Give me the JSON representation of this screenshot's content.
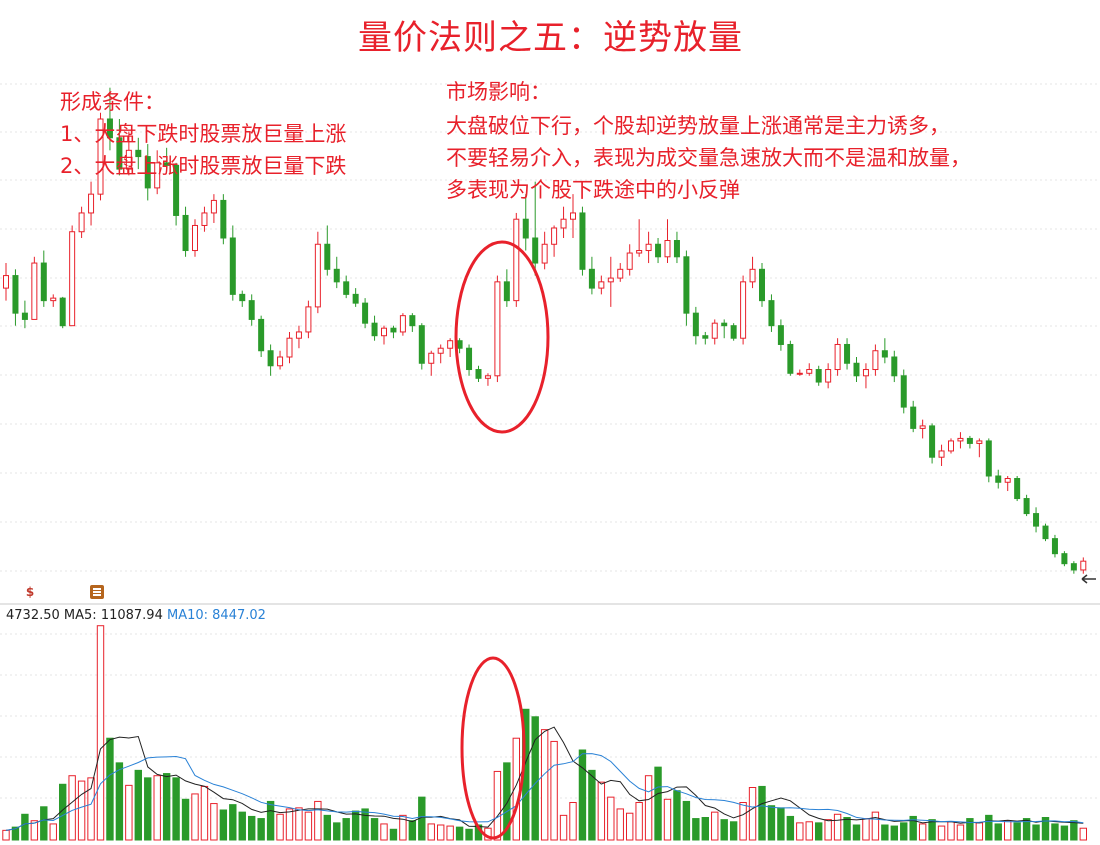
{
  "title": "量价法则之五：逆势放量",
  "conditions": {
    "heading": "形成条件：",
    "items": [
      "1、大盘下跌时股票放巨量上涨",
      "2、大盘上涨时股票放巨量下跌"
    ]
  },
  "impact": {
    "heading": "市场影响：",
    "lines": [
      "大盘破位下行，个股却逆势放量上涨通常是主力诱多，",
      "不要轻易介入，表现为成交量急速放大而不是温和放量，",
      "多表现为个股下跌途中的小反弹"
    ]
  },
  "volume_info": {
    "volume": "4732.50",
    "ma5_label": "MA5:",
    "ma5_value": "11087.94",
    "ma10_label": "MA10:",
    "ma10_value": "8447.02"
  },
  "icons": {
    "dollar": "dollar-icon",
    "list": "list-icon"
  },
  "colors": {
    "up": "#e8212b",
    "down": "#2a9a2a",
    "ma5": "#222222",
    "ma10": "#2a82d6",
    "annotation": "#e8212b"
  },
  "chart_data": [
    {
      "type": "candlestick",
      "series": [
        {
          "name": "price",
          "values": [
            [
              50.0,
              52.0,
              49.0,
              51.0
            ],
            [
              51.0,
              51.5,
              47.0,
              48.0
            ],
            [
              48.0,
              49.0,
              46.8,
              47.5
            ],
            [
              47.5,
              52.5,
              47.5,
              52.0
            ],
            [
              52.0,
              53.0,
              48.5,
              49.0
            ],
            [
              49.0,
              49.5,
              48.5,
              49.2
            ],
            [
              49.2,
              49.3,
              46.8,
              47.0
            ],
            [
              47.0,
              55.0,
              47.0,
              54.5
            ],
            [
              54.5,
              56.5,
              54.0,
              56.0
            ],
            [
              56.0,
              58.5,
              55.0,
              57.5
            ],
            [
              57.5,
              64.0,
              57.0,
              63.5
            ],
            [
              63.5,
              66.0,
              61.0,
              62.0
            ],
            [
              62.0,
              63.5,
              59.0,
              59.5
            ],
            [
              59.5,
              62.5,
              59.0,
              61.0
            ],
            [
              61.0,
              62.0,
              59.5,
              60.5
            ],
            [
              60.5,
              61.5,
              57.0,
              58.0
            ],
            [
              58.0,
              61.0,
              57.5,
              60.0
            ],
            [
              60.0,
              61.2,
              59.5,
              59.8
            ],
            [
              59.8,
              60.0,
              55.0,
              55.8
            ],
            [
              55.8,
              56.5,
              52.5,
              53.0
            ],
            [
              53.0,
              55.5,
              52.5,
              55.0
            ],
            [
              55.0,
              56.5,
              54.5,
              56.0
            ],
            [
              56.0,
              57.5,
              55.2,
              57.0
            ],
            [
              57.0,
              57.5,
              53.5,
              54.0
            ],
            [
              54.0,
              55.0,
              49.0,
              49.5
            ],
            [
              49.5,
              49.8,
              48.5,
              49.0
            ],
            [
              49.0,
              49.5,
              47.0,
              47.5
            ],
            [
              47.5,
              47.8,
              44.5,
              45.0
            ],
            [
              45.0,
              45.5,
              43.0,
              43.8
            ],
            [
              43.8,
              45.0,
              43.5,
              44.5
            ],
            [
              44.5,
              46.5,
              44.0,
              46.0
            ],
            [
              46.0,
              47.0,
              45.2,
              46.5
            ],
            [
              46.5,
              49.0,
              46.0,
              48.5
            ],
            [
              48.5,
              54.5,
              48.0,
              53.5
            ],
            [
              53.5,
              55.0,
              51.0,
              51.5
            ],
            [
              51.5,
              52.5,
              50.0,
              50.5
            ],
            [
              50.5,
              51.0,
              49.2,
              49.5
            ],
            [
              49.5,
              50.0,
              48.5,
              48.8
            ],
            [
              48.8,
              49.2,
              46.8,
              47.2
            ],
            [
              47.2,
              47.8,
              45.8,
              46.2
            ],
            [
              46.2,
              47.0,
              45.5,
              46.8
            ],
            [
              46.8,
              47.0,
              46.0,
              46.5
            ],
            [
              46.5,
              48.0,
              46.2,
              47.8
            ],
            [
              47.8,
              48.0,
              46.5,
              47.0
            ],
            [
              47.0,
              47.2,
              43.5,
              44.0
            ],
            [
              44.0,
              45.0,
              43.0,
              44.8
            ],
            [
              44.8,
              45.5,
              44.0,
              45.2
            ],
            [
              45.2,
              46.0,
              44.5,
              45.8
            ],
            [
              45.8,
              46.0,
              44.8,
              45.2
            ],
            [
              45.2,
              45.5,
              43.0,
              43.5
            ],
            [
              43.5,
              43.8,
              42.5,
              42.8
            ],
            [
              42.8,
              43.2,
              42.2,
              43.0
            ],
            [
              43.0,
              51.0,
              42.5,
              50.5
            ],
            [
              50.5,
              51.5,
              48.5,
              49.0
            ],
            [
              49.0,
              56.0,
              48.5,
              55.5
            ],
            [
              55.5,
              57.5,
              53.0,
              54.0
            ],
            [
              54.0,
              58.5,
              51.0,
              52.0
            ],
            [
              52.0,
              54.5,
              51.5,
              53.5
            ],
            [
              53.5,
              55.0,
              52.5,
              54.8
            ],
            [
              54.8,
              56.5,
              54.0,
              55.5
            ],
            [
              55.5,
              57.5,
              54.0,
              56.0
            ],
            [
              56.0,
              56.5,
              51.0,
              51.5
            ],
            [
              51.5,
              52.5,
              49.5,
              50.0
            ],
            [
              50.0,
              51.0,
              49.5,
              50.5
            ],
            [
              50.5,
              52.5,
              48.5,
              50.8
            ],
            [
              50.8,
              52.0,
              50.5,
              51.5
            ],
            [
              51.5,
              53.5,
              51.0,
              52.8
            ],
            [
              52.8,
              55.5,
              52.5,
              53.0
            ],
            [
              53.0,
              54.5,
              52.0,
              53.5
            ],
            [
              53.5,
              54.0,
              52.0,
              52.5
            ],
            [
              52.5,
              55.5,
              52.0,
              53.8
            ],
            [
              53.8,
              54.5,
              52.0,
              52.5
            ],
            [
              52.5,
              53.0,
              47.0,
              48.0
            ],
            [
              48.0,
              48.5,
              45.5,
              46.2
            ],
            [
              46.2,
              46.5,
              45.5,
              46.0
            ],
            [
              46.0,
              47.5,
              45.5,
              47.2
            ],
            [
              47.2,
              47.5,
              46.0,
              47.0
            ],
            [
              47.0,
              47.2,
              45.8,
              46.0
            ],
            [
              46.0,
              51.0,
              45.5,
              50.5
            ],
            [
              50.5,
              52.5,
              50.0,
              51.5
            ],
            [
              51.5,
              52.0,
              48.5,
              49.0
            ],
            [
              49.0,
              49.5,
              46.5,
              47.0
            ],
            [
              47.0,
              47.5,
              45.0,
              45.5
            ],
            [
              45.5,
              45.8,
              43.0,
              43.2
            ],
            [
              43.2,
              43.5,
              43.0,
              43.2
            ],
            [
              43.2,
              44.0,
              43.0,
              43.5
            ],
            [
              43.5,
              43.8,
              42.2,
              42.5
            ],
            [
              42.5,
              44.0,
              42.0,
              43.5
            ],
            [
              43.5,
              46.0,
              43.0,
              45.5
            ],
            [
              45.5,
              46.0,
              43.5,
              44.0
            ],
            [
              44.0,
              44.5,
              42.5,
              43.0
            ],
            [
              43.0,
              44.0,
              42.0,
              43.5
            ],
            [
              43.5,
              45.5,
              43.0,
              45.0
            ],
            [
              45.0,
              46.0,
              44.0,
              44.5
            ],
            [
              44.5,
              45.0,
              42.5,
              43.0
            ],
            [
              43.0,
              43.5,
              40.0,
              40.5
            ],
            [
              40.5,
              41.0,
              38.5,
              38.8
            ],
            [
              38.8,
              39.5,
              38.0,
              39.0
            ],
            [
              39.0,
              39.2,
              36.0,
              36.5
            ],
            [
              36.5,
              37.5,
              35.8,
              37.0
            ],
            [
              37.0,
              38.0,
              36.8,
              37.8
            ],
            [
              37.8,
              38.5,
              37.2,
              38.0
            ],
            [
              38.0,
              38.2,
              37.2,
              37.6
            ],
            [
              37.6,
              38.0,
              36.5,
              37.8
            ],
            [
              37.8,
              38.0,
              34.5,
              35.0
            ],
            [
              35.0,
              35.5,
              34.0,
              34.5
            ],
            [
              34.5,
              35.0,
              33.8,
              34.8
            ],
            [
              34.8,
              35.0,
              33.0,
              33.2
            ],
            [
              33.2,
              33.5,
              31.8,
              32.0
            ],
            [
              32.0,
              32.5,
              30.5,
              31.0
            ],
            [
              31.0,
              31.2,
              29.8,
              30.0
            ],
            [
              30.0,
              30.3,
              28.5,
              28.8
            ],
            [
              28.8,
              29.0,
              27.8,
              28.0
            ],
            [
              28.0,
              28.2,
              27.2,
              27.5
            ],
            [
              27.5,
              28.5,
              27.2,
              28.2
            ]
          ]
        }
      ],
      "ylim": [
        25.5,
        73.0
      ]
    },
    {
      "type": "bar",
      "series": [
        {
          "name": "volume",
          "values": [
            900,
            1200,
            2400,
            1800,
            3100,
            1500,
            5200,
            6000,
            5500,
            5800,
            20000,
            9500,
            7200,
            5100,
            6500,
            5800,
            6000,
            6200,
            5800,
            3800,
            4300,
            5000,
            3400,
            2800,
            3300,
            2600,
            2200,
            2000,
            3600,
            2400,
            2900,
            3000,
            2600,
            3600,
            2300,
            1600,
            2000,
            2700,
            2900,
            2000,
            1500,
            1000,
            2300,
            1800,
            4000,
            1500,
            1400,
            1300,
            1200,
            1000,
            1400,
            1100,
            6400,
            7200,
            9500,
            12200,
            11500,
            10300,
            9200,
            2300,
            3500,
            8400,
            6500,
            5400,
            4000,
            2900,
            2500,
            3500,
            6000,
            6800,
            3800,
            4600,
            3600,
            2000,
            2100,
            2600,
            1900,
            1700,
            3500,
            4900,
            5000,
            3200,
            3000,
            2200,
            1600,
            1700,
            1600,
            1900,
            2400,
            2100,
            1400,
            2000,
            2600,
            1400,
            1300,
            1600,
            2200,
            1500,
            1900,
            1300,
            1700,
            1400,
            2000,
            1600,
            2300,
            1500,
            1800,
            1600,
            2000,
            1400,
            2100,
            1500,
            1300,
            1800,
            1100
          ]
        }
      ],
      "ma_lines": [
        {
          "name": "MA5"
        },
        {
          "name": "MA10"
        }
      ],
      "ylim": [
        0,
        21000
      ]
    }
  ]
}
